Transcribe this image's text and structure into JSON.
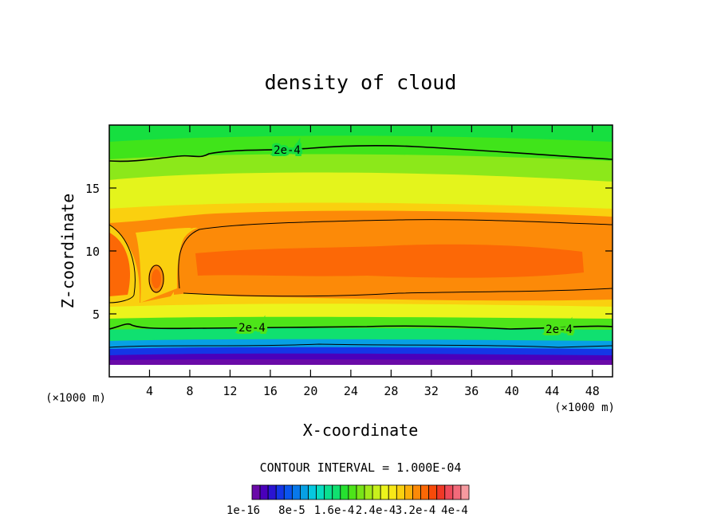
{
  "chart_data": {
    "type": "heatmap",
    "title": "density of cloud",
    "xlabel": "X-coordinate",
    "ylabel": "Z-coordinate",
    "x_unit_note": "(×1000 m)",
    "z_unit_note": "(×1000 m)",
    "xlim": [
      0,
      50
    ],
    "ylim": [
      0,
      20
    ],
    "x_ticks": [
      "4",
      "8",
      "12",
      "16",
      "20",
      "24",
      "28",
      "32",
      "36",
      "40",
      "44",
      "48"
    ],
    "y_ticks": [
      "5",
      "10",
      "15"
    ],
    "contour_interval_label": "CONTOUR INTERVAL = 1.000E-04",
    "contour_labels": [
      "2e-4",
      "2e-4",
      "2e-4"
    ],
    "colorbar_labels": [
      "1e-16",
      "8e-5",
      "1.6e-4",
      "2.4e-4",
      "3.2e-4",
      "4e-4"
    ],
    "colorbar_colors": [
      "#6a0aa8",
      "#4a00bb",
      "#2a14d2",
      "#1436e6",
      "#0a55ee",
      "#0878ea",
      "#07a0e4",
      "#06c8e0",
      "#08dcc0",
      "#0ae090",
      "#10e070",
      "#26e030",
      "#4de419",
      "#78e418",
      "#a2ea1a",
      "#c8f01c",
      "#ecf41c",
      "#f8e818",
      "#fad00f",
      "#fcb00a",
      "#fc8a08",
      "#fc6806",
      "#f84a0a",
      "#f03826",
      "#ee4a5a",
      "#f26a7a",
      "#f69aa0"
    ]
  }
}
